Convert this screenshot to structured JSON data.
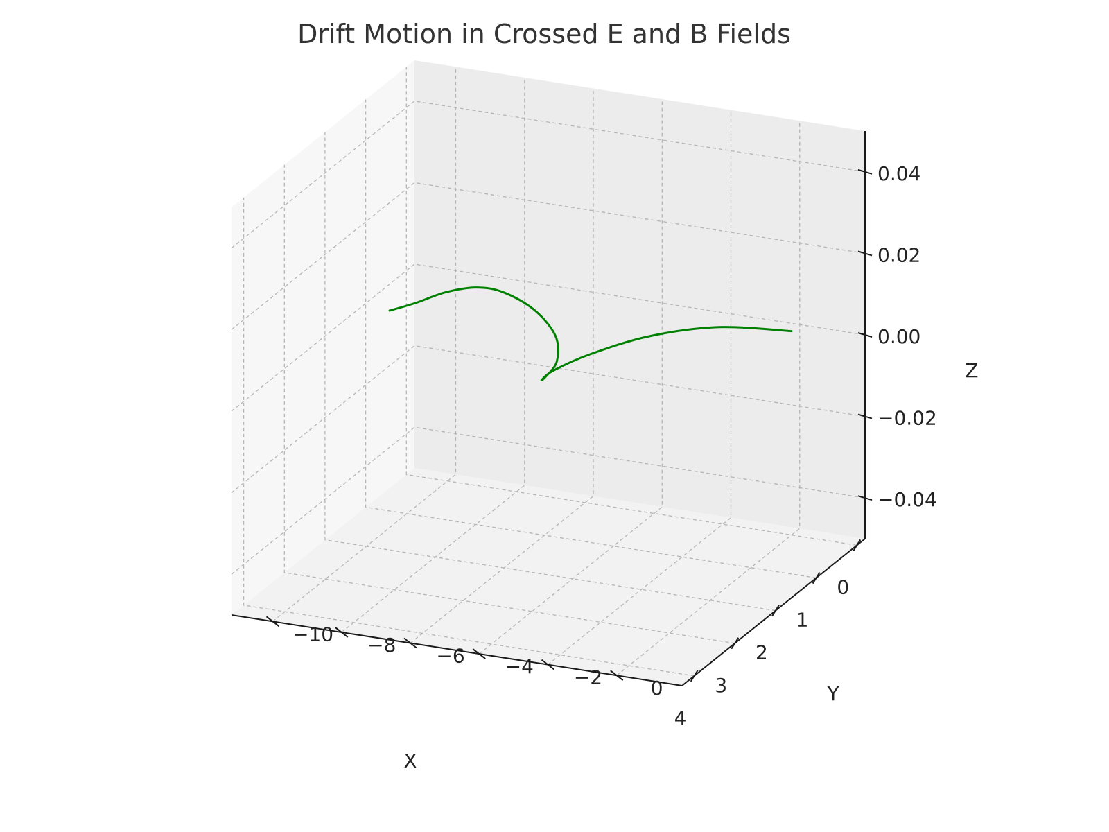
{
  "chart_data": {
    "type": "line",
    "title": "Drift Motion in Crossed E and B Fields",
    "xlabel": "X",
    "ylabel": "Y",
    "zlabel": "Z",
    "x_ticks": [
      "0",
      "1",
      "2",
      "3",
      "4"
    ],
    "y_ticks": [
      "0",
      "−2",
      "−4",
      "−6",
      "−8",
      "−10"
    ],
    "z_ticks": [
      "0.04",
      "0.02",
      "0.00",
      "−0.02",
      "−0.04"
    ],
    "xlim": [
      -0.2,
      4.3
    ],
    "ylim": [
      -11.2,
      1.9
    ],
    "zlim": [
      -0.05,
      0.05
    ],
    "grid": true,
    "series": [
      {
        "color": "#008000",
        "x": [
          0.0,
          0.19,
          0.7,
          1.4,
          1.97,
          2.25,
          2.16,
          1.71,
          1.07,
          0.49,
          0.16,
          0.15,
          0.4,
          0.79,
          1.09
        ],
        "y": [
          0.0,
          -1.9,
          -3.3,
          -4.2,
          -4.6,
          -4.6,
          -4.6,
          -4.8,
          -5.6,
          -6.9,
          -8.2,
          -9.0,
          -9.6,
          -10.0,
          -10.4
        ],
        "z": [
          0,
          0,
          0,
          0,
          0,
          0,
          0,
          0,
          0,
          0,
          0,
          0,
          0,
          0,
          0
        ]
      }
    ]
  }
}
